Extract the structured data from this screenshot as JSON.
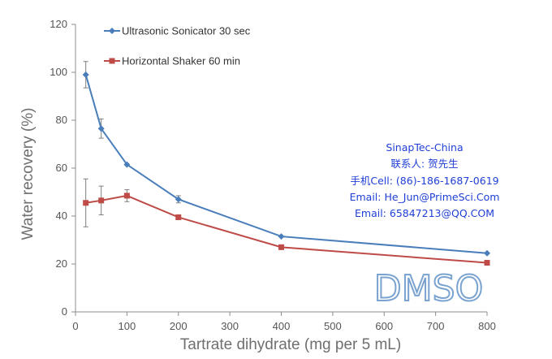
{
  "chart_data": {
    "type": "line",
    "title": "",
    "xlabel": "Tartrate dihydrate (mg per 5 mL)",
    "ylabel": "Water recovery (%)",
    "xlim": [
      0,
      800
    ],
    "ylim": [
      0,
      120
    ],
    "xticks": [
      0,
      100,
      200,
      300,
      400,
      500,
      600,
      700,
      800
    ],
    "yticks": [
      0,
      20,
      40,
      60,
      80,
      100,
      120
    ],
    "grid": false,
    "legend": "top-left",
    "series": [
      {
        "name": "Ultrasonic Sonicator 30 sec",
        "color": "#4a7ebb",
        "marker": "diamond",
        "x": [
          20,
          50,
          100,
          200,
          400,
          800
        ],
        "y": [
          99,
          76.5,
          61.5,
          47,
          31.5,
          24.5
        ],
        "err": [
          5.5,
          4,
          0.5,
          1.5,
          0.5,
          0.5
        ]
      },
      {
        "name": "Horizontal Shaker 60 min",
        "color": "#be4b48",
        "marker": "square",
        "x": [
          20,
          50,
          100,
          200,
          400,
          800
        ],
        "y": [
          45.5,
          46.5,
          48.5,
          39.5,
          27,
          20.5
        ],
        "err": [
          10,
          6,
          2.5,
          0.5,
          0.5,
          0.5
        ]
      }
    ]
  },
  "overlay": {
    "contact_lines": [
      "SinapTec-China",
      "联系人: 贺先生",
      "手机Cell: (86)-186-1687-0619",
      "Email: He_Jun@PrimeSci.Com",
      "Email: 65847213@QQ.COM"
    ],
    "watermark": "DMSO",
    "contact_color": "#1f3fd6"
  }
}
